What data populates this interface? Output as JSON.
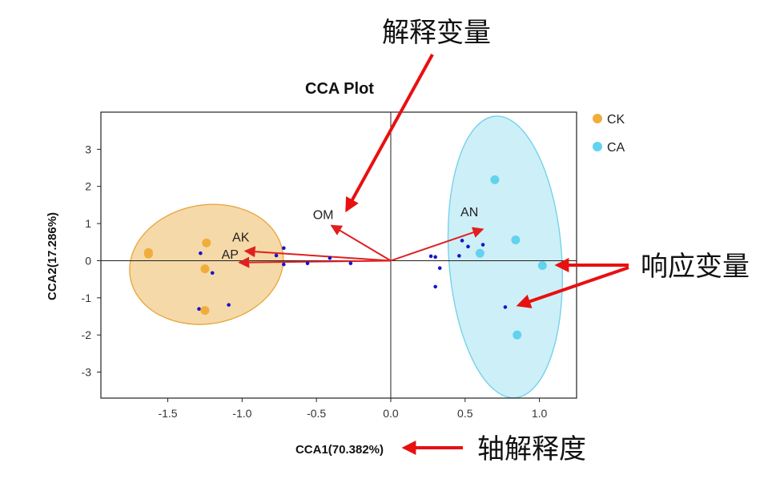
{
  "chart_data": {
    "type": "scatter",
    "title": "CCA Plot",
    "xlabel": "CCA1(70.382%)",
    "ylabel": "CCA2(17.286%)",
    "xlim": [
      -1.95,
      1.25
    ],
    "ylim": [
      -3.7,
      4.0
    ],
    "xticks": [
      -1.5,
      -1.0,
      -0.5,
      0.0,
      0.5,
      1.0
    ],
    "xtick_labels": [
      "-1.5",
      "-1.0",
      "-0.5",
      "0.0",
      "0.5",
      "1.0"
    ],
    "yticks": [
      -3,
      -2,
      -1,
      0,
      1,
      2,
      3
    ],
    "ytick_labels": [
      "-3",
      "-2",
      "-1",
      "0",
      "1",
      "2",
      "3"
    ],
    "grid": false,
    "legend_position": "right",
    "series": [
      {
        "name": "CK",
        "color": "#F0AD3C",
        "points": [
          [
            -1.63,
            0.22
          ],
          [
            -1.63,
            0.18
          ],
          [
            -1.24,
            0.48
          ],
          [
            -1.25,
            -0.22
          ],
          [
            -1.25,
            -1.34
          ]
        ],
        "ellipse": {
          "center": [
            -1.24,
            -0.1
          ],
          "radius_x": 0.52,
          "radius_y": 1.6,
          "fill": "#F5D9A8",
          "stroke": "#E9A33A"
        }
      },
      {
        "name": "CA",
        "color": "#62D2EE",
        "points": [
          [
            0.7,
            2.18
          ],
          [
            0.84,
            0.56
          ],
          [
            0.6,
            0.2
          ],
          [
            1.02,
            -0.13
          ],
          [
            0.85,
            -2.0
          ]
        ],
        "ellipse": {
          "center": [
            0.77,
            0.1
          ],
          "radius_x": 0.38,
          "radius_y": 3.8,
          "fill": "#CDEFF8",
          "stroke": "#6FD0EA"
        }
      }
    ],
    "species_points": {
      "color": "#1515CC",
      "points": [
        [
          -1.28,
          0.2
        ],
        [
          -1.2,
          -0.33
        ],
        [
          -1.09,
          -1.19
        ],
        [
          -1.29,
          -1.3
        ],
        [
          -0.77,
          0.14
        ],
        [
          -0.72,
          0.34
        ],
        [
          -0.72,
          -0.1
        ],
        [
          -0.56,
          -0.07
        ],
        [
          -0.41,
          0.07
        ],
        [
          -0.27,
          -0.07
        ],
        [
          0.27,
          0.12
        ],
        [
          0.3,
          0.1
        ],
        [
          0.33,
          -0.2
        ],
        [
          0.3,
          -0.7
        ],
        [
          0.46,
          0.13
        ],
        [
          0.48,
          0.54
        ],
        [
          0.52,
          0.38
        ],
        [
          0.62,
          0.43
        ],
        [
          0.77,
          -1.25
        ]
      ]
    },
    "vectors": [
      {
        "label": "AK",
        "x": -0.98,
        "y": 0.26
      },
      {
        "label": "AP",
        "x": -1.02,
        "y": -0.05
      },
      {
        "label": "OM",
        "x": -0.4,
        "y": 0.95
      },
      {
        "label": "AN",
        "x": 0.62,
        "y": 0.85
      }
    ],
    "vector_color": "#E02020"
  },
  "annotations": {
    "color": "#E81010",
    "explanatory_variables": "解释变量",
    "response_variables": "响应变量",
    "axis_explanation": "轴解释度"
  }
}
